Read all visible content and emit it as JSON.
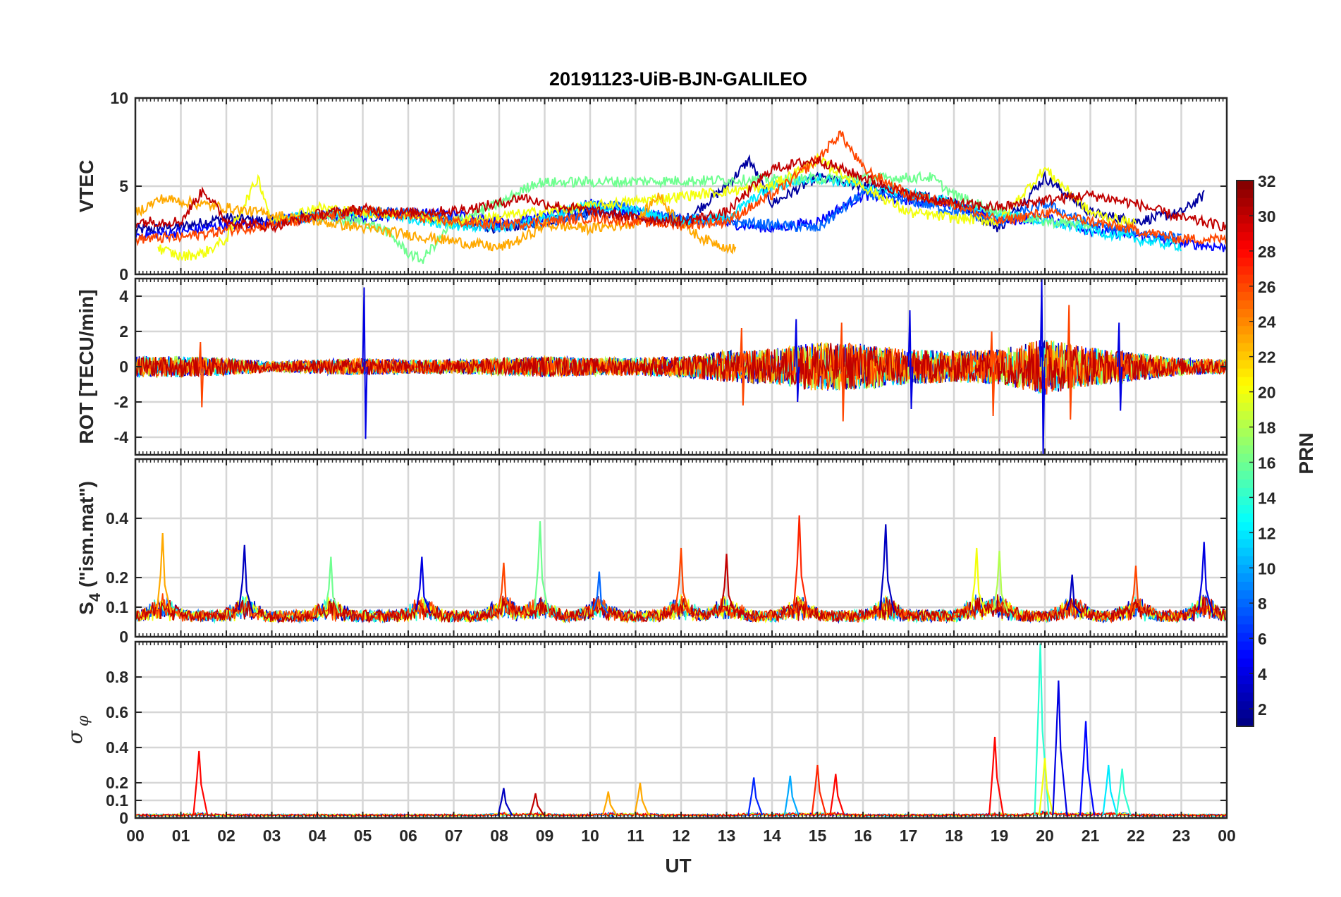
{
  "chart_data": [
    {
      "type": "line",
      "panel": "vtec",
      "title": "20191123-UiB-BJN-GALILEO",
      "ylabel": "VTEC",
      "ylim": [
        0,
        10
      ],
      "yticks": [
        0,
        5,
        10
      ],
      "ytick_labels": [
        "0",
        "5",
        "10"
      ],
      "grid": true,
      "series": [
        {
          "prn": 2,
          "x": [
            0,
            1,
            2,
            3,
            4,
            5,
            6,
            7,
            8,
            9,
            10,
            11,
            12,
            13,
            13.5,
            14,
            15,
            16,
            17,
            18,
            19,
            20,
            21,
            22,
            23,
            23.5
          ],
          "values": [
            2.5,
            2.7,
            3.2,
            3.0,
            3.4,
            3.5,
            3.4,
            3.0,
            2.6,
            3.0,
            3.6,
            3.3,
            2.9,
            5.0,
            6.5,
            4.0,
            5.5,
            5.0,
            4.5,
            4.2,
            2.6,
            5.5,
            3.5,
            3.0,
            3.5,
            4.5
          ]
        },
        {
          "prn": 5,
          "x": [
            0,
            1,
            2,
            3,
            4,
            5,
            6,
            7,
            8,
            9,
            10,
            11,
            12,
            13,
            14,
            15,
            16,
            17,
            18,
            19,
            20,
            21,
            22,
            23,
            24
          ],
          "values": [
            2.2,
            2.4,
            2.8,
            3.0,
            3.3,
            3.2,
            3.5,
            3.4,
            3.0,
            3.2,
            4.0,
            3.5,
            3.1,
            2.9,
            2.6,
            3.0,
            4.5,
            4.2,
            4.0,
            3.0,
            3.2,
            2.5,
            2.2,
            1.8,
            1.5
          ]
        },
        {
          "prn": 8,
          "x": [
            3,
            4,
            5,
            6,
            7,
            8,
            9,
            10,
            10.5,
            11,
            12,
            13,
            14,
            15,
            16,
            17,
            18,
            19,
            20,
            21,
            22,
            23
          ],
          "values": [
            3.0,
            3.3,
            3.6,
            3.5,
            3.0,
            2.6,
            3.0,
            3.4,
            4.0,
            3.6,
            3.2,
            3.0,
            2.8,
            2.6,
            4.6,
            4.2,
            3.6,
            3.0,
            4.0,
            2.8,
            2.4,
            2.0
          ]
        },
        {
          "prn": 12,
          "x": [
            3,
            4,
            5,
            6,
            7,
            8,
            9,
            10,
            11,
            12,
            13,
            14,
            15,
            16,
            17,
            18,
            19,
            20,
            21,
            22,
            23
          ],
          "values": [
            3.1,
            3.3,
            3.5,
            3.2,
            2.8,
            2.6,
            3.2,
            3.9,
            3.6,
            3.0,
            3.2,
            5.0,
            5.5,
            5.0,
            4.6,
            4.0,
            3.4,
            3.0,
            2.5,
            2.0,
            1.6
          ]
        },
        {
          "prn": 16,
          "x": [
            4,
            5,
            5.5,
            6,
            6.3,
            7,
            8,
            8.8,
            17.5,
            18,
            18.5,
            19,
            20,
            21
          ],
          "values": [
            3.2,
            3.0,
            2.5,
            1.2,
            0.8,
            3.0,
            4.0,
            5.2,
            5.5,
            4.5,
            4.0,
            3.5,
            3.0,
            2.8
          ]
        },
        {
          "prn": 20,
          "x": [
            0.5,
            1,
            1.5,
            2,
            2.7,
            3,
            4,
            5,
            6,
            7,
            14,
            15,
            16,
            17,
            18,
            19,
            20,
            21,
            22
          ],
          "values": [
            1.5,
            1.0,
            1.2,
            2.0,
            5.5,
            3.0,
            3.8,
            3.5,
            3.4,
            3.0,
            5.0,
            6.5,
            5.0,
            3.5,
            3.2,
            3.0,
            6.0,
            3.5,
            2.8
          ]
        },
        {
          "prn": 23,
          "x": [
            0,
            0.5,
            0.6,
            8,
            8.5,
            9,
            10,
            11,
            11.5,
            12,
            12.5,
            13.2
          ],
          "values": [
            3.5,
            4.2,
            4.3,
            1.5,
            2.0,
            2.8,
            2.6,
            2.9,
            4.5,
            2.8,
            2.0,
            1.4
          ]
        },
        {
          "prn": 26,
          "x": [
            0,
            1,
            2,
            3,
            4,
            5,
            6,
            7,
            8,
            9,
            10,
            11,
            12,
            13,
            14,
            15,
            15.5,
            16,
            17,
            18,
            18.5,
            19,
            20,
            21,
            22,
            23,
            24
          ],
          "values": [
            2.0,
            2.1,
            2.5,
            2.8,
            3.2,
            3.6,
            3.3,
            3.0,
            2.8,
            3.0,
            3.2,
            3.0,
            2.8,
            3.0,
            4.5,
            6.5,
            8.0,
            6.0,
            4.5,
            4.0,
            3.5,
            3.0,
            3.5,
            3.0,
            2.5,
            2.0,
            2.0
          ]
        },
        {
          "prn": 30,
          "x": [
            0,
            1,
            1.5,
            2,
            3,
            4,
            5,
            6,
            7,
            8,
            8.5,
            9,
            10,
            11,
            12,
            13,
            14,
            15,
            16,
            17,
            18,
            19,
            20,
            21,
            22,
            23,
            24
          ],
          "values": [
            3.0,
            3.0,
            4.8,
            3.0,
            2.7,
            3.4,
            3.7,
            3.5,
            3.6,
            4.0,
            4.4,
            4.0,
            3.6,
            3.2,
            3.0,
            3.5,
            6.0,
            6.5,
            5.5,
            4.5,
            4.0,
            3.8,
            4.2,
            4.5,
            4.0,
            3.2,
            2.7
          ]
        }
      ]
    },
    {
      "type": "line",
      "panel": "rot",
      "ylabel": "ROT [TECU/min]",
      "ylim": [
        -5,
        5
      ],
      "yticks": [
        -4,
        -2,
        0,
        2,
        4
      ],
      "ytick_labels": [
        "-4",
        "-2",
        "0",
        "2",
        "4"
      ],
      "grid": true,
      "envelope": {
        "x": [
          0,
          1,
          2,
          3,
          4,
          5,
          6,
          7,
          8,
          9,
          10,
          11,
          12,
          13,
          14,
          15,
          16,
          17,
          18,
          19,
          20,
          21,
          22,
          23,
          24
        ],
        "amplitude": [
          0.6,
          0.6,
          0.5,
          0.3,
          0.4,
          0.5,
          0.4,
          0.4,
          0.5,
          0.6,
          0.5,
          0.5,
          0.6,
          0.9,
          1.0,
          1.4,
          1.3,
          1.0,
          0.9,
          1.0,
          1.6,
          1.1,
          0.8,
          0.5,
          0.4
        ]
      },
      "spikes": [
        {
          "x": 1.4,
          "values": [
            1.4,
            -2.3
          ]
        },
        {
          "x": 5.0,
          "values": [
            4.5,
            -4.1
          ]
        },
        {
          "x": 13.3,
          "values": [
            2.2,
            -2.2
          ]
        },
        {
          "x": 14.5,
          "values": [
            2.7,
            -2.0
          ]
        },
        {
          "x": 15.5,
          "values": [
            2.5,
            -3.1
          ]
        },
        {
          "x": 17.0,
          "values": [
            3.2,
            -2.4
          ]
        },
        {
          "x": 18.8,
          "values": [
            2.0,
            -2.8
          ]
        },
        {
          "x": 19.9,
          "values": [
            5.0,
            -5.0
          ]
        },
        {
          "x": 20.5,
          "values": [
            3.5,
            -3.0
          ]
        },
        {
          "x": 21.6,
          "values": [
            2.5,
            -2.5
          ]
        }
      ]
    },
    {
      "type": "line",
      "panel": "s4",
      "ylabel": "S4 (\"ism.mat\")",
      "ylim": [
        0,
        0.6
      ],
      "yticks": [
        0,
        0.1,
        0.2,
        0.4
      ],
      "ytick_labels": [
        "0",
        "0.1",
        "0.2",
        "0.4"
      ],
      "grid": true,
      "baseline": 0.05,
      "peaks": [
        {
          "x": 0.6,
          "value": 0.35,
          "prn": 23
        },
        {
          "x": 2.4,
          "value": 0.31,
          "prn": 3
        },
        {
          "x": 4.3,
          "value": 0.27,
          "prn": 16
        },
        {
          "x": 6.3,
          "value": 0.27,
          "prn": 4
        },
        {
          "x": 8.1,
          "value": 0.25,
          "prn": 26
        },
        {
          "x": 8.9,
          "value": 0.39,
          "prn": 16
        },
        {
          "x": 10.2,
          "value": 0.22,
          "prn": 8
        },
        {
          "x": 12.0,
          "value": 0.3,
          "prn": 26
        },
        {
          "x": 13.0,
          "value": 0.28,
          "prn": 30
        },
        {
          "x": 14.6,
          "value": 0.41,
          "prn": 27
        },
        {
          "x": 16.5,
          "value": 0.38,
          "prn": 3
        },
        {
          "x": 18.5,
          "value": 0.3,
          "prn": 20
        },
        {
          "x": 19.0,
          "value": 0.29,
          "prn": 18
        },
        {
          "x": 20.6,
          "value": 0.21,
          "prn": 3
        },
        {
          "x": 22.0,
          "value": 0.24,
          "prn": 26
        },
        {
          "x": 23.5,
          "value": 0.32,
          "prn": 4
        }
      ]
    },
    {
      "type": "line",
      "panel": "sigma_phi",
      "ylabel": "σφ",
      "ylim": [
        0,
        1
      ],
      "yticks": [
        0,
        0.1,
        0.2,
        0.4,
        0.6,
        0.8
      ],
      "ytick_labels": [
        "0",
        "0.1",
        "0.2",
        "0.4",
        "0.6",
        "0.8"
      ],
      "grid": true,
      "baseline": 0.01,
      "peaks": [
        {
          "x": 1.4,
          "value": 0.38,
          "prn": 28
        },
        {
          "x": 8.1,
          "value": 0.17,
          "prn": 3
        },
        {
          "x": 8.8,
          "value": 0.14,
          "prn": 30
        },
        {
          "x": 10.4,
          "value": 0.15,
          "prn": 23
        },
        {
          "x": 11.1,
          "value": 0.2,
          "prn": 23
        },
        {
          "x": 13.6,
          "value": 0.23,
          "prn": 6
        },
        {
          "x": 14.4,
          "value": 0.24,
          "prn": 10
        },
        {
          "x": 15.0,
          "value": 0.3,
          "prn": 27
        },
        {
          "x": 15.4,
          "value": 0.25,
          "prn": 28
        },
        {
          "x": 18.9,
          "value": 0.46,
          "prn": 28
        },
        {
          "x": 19.9,
          "value": 0.99,
          "prn": 14
        },
        {
          "x": 20.0,
          "value": 0.34,
          "prn": 20
        },
        {
          "x": 20.3,
          "value": 0.78,
          "prn": 4
        },
        {
          "x": 20.9,
          "value": 0.55,
          "prn": 5
        },
        {
          "x": 21.4,
          "value": 0.3,
          "prn": 12
        },
        {
          "x": 21.7,
          "value": 0.28,
          "prn": 14
        }
      ]
    }
  ],
  "xaxis": {
    "label": "UT",
    "xlim": [
      0,
      24
    ],
    "tick_labels": [
      "00",
      "01",
      "02",
      "03",
      "04",
      "05",
      "06",
      "07",
      "08",
      "09",
      "10",
      "11",
      "12",
      "13",
      "14",
      "15",
      "16",
      "17",
      "18",
      "19",
      "20",
      "21",
      "22",
      "23",
      "00"
    ]
  },
  "colorbar": {
    "label": "PRN",
    "colormap": "jet",
    "range": [
      1,
      32
    ],
    "ticks": [
      2,
      4,
      6,
      8,
      10,
      12,
      14,
      16,
      18,
      20,
      22,
      24,
      26,
      28,
      30,
      32
    ],
    "tick_labels": [
      "2",
      "4",
      "6",
      "8",
      "10",
      "12",
      "14",
      "16",
      "18",
      "20",
      "22",
      "24",
      "26",
      "28",
      "30",
      "32"
    ]
  }
}
